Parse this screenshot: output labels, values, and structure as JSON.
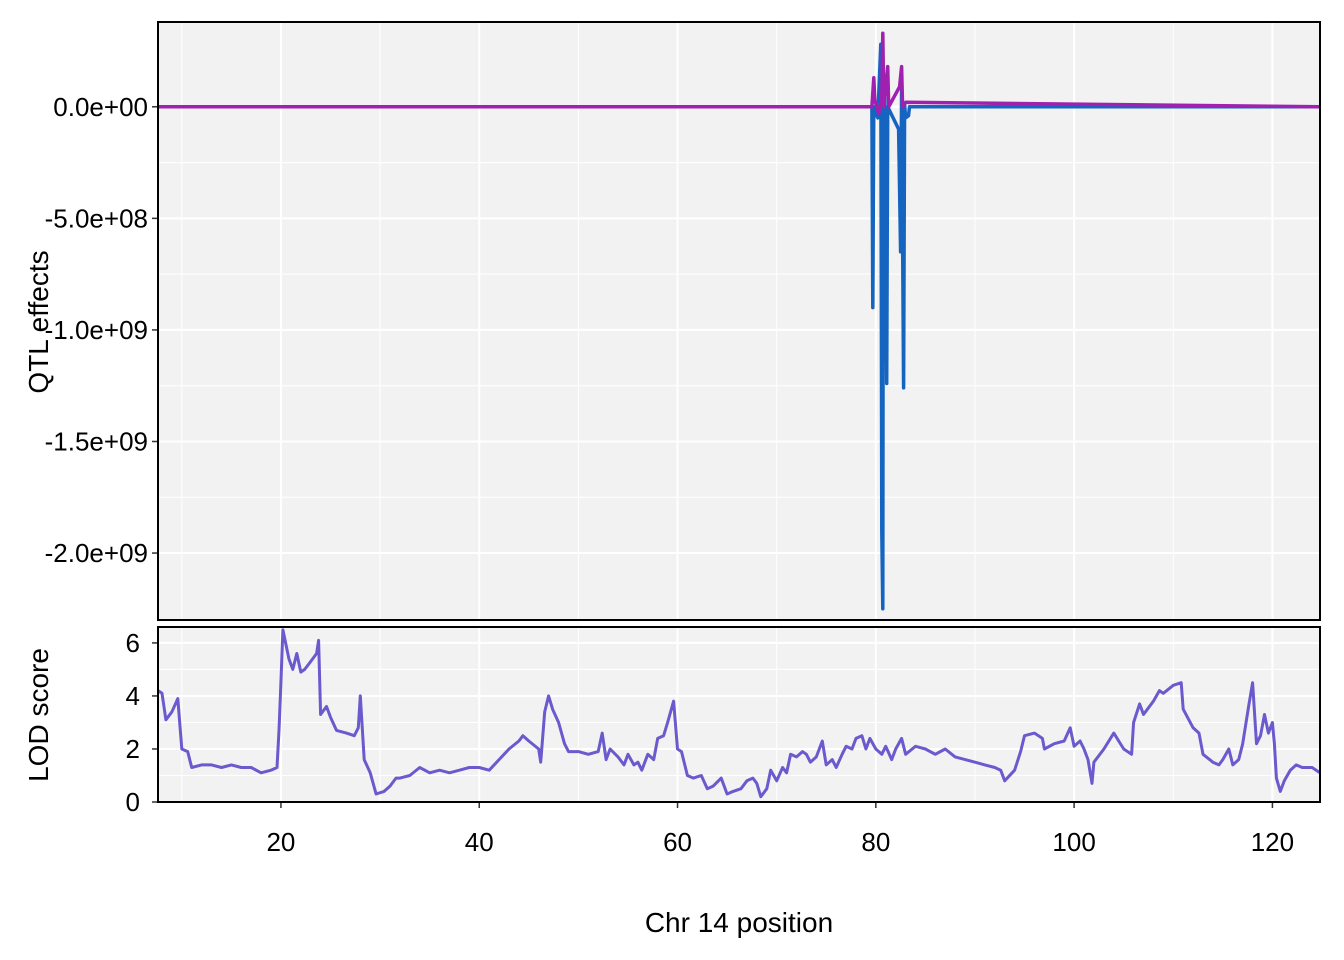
{
  "chart_data": [
    {
      "type": "line",
      "panel": "top",
      "ylabel": "QTL effects",
      "xlim": [
        7.6,
        124.8
      ],
      "ylim": [
        -2300000000,
        380000000
      ],
      "y_ticks": [
        {
          "value": 0,
          "label": "0.0e+00"
        },
        {
          "value": -500000000,
          "label": "-5.0e+08"
        },
        {
          "value": -1000000000,
          "label": "-1.0e+09"
        },
        {
          "value": -1500000000,
          "label": "-1.5e+09"
        },
        {
          "value": -2000000000,
          "label": "-2.0e+09"
        }
      ],
      "grid": true,
      "series": [
        {
          "color": "#1565C0",
          "points": [
            [
              7.6,
              0
            ],
            [
              79.6,
              0
            ],
            [
              79.7,
              -900000000
            ],
            [
              79.8,
              0
            ],
            [
              80.2,
              -50000000
            ],
            [
              80.5,
              280000000
            ],
            [
              80.6,
              -1900000000
            ],
            [
              80.7,
              -2250000000
            ],
            [
              80.75,
              0
            ],
            [
              80.9,
              120000000
            ],
            [
              81.1,
              -1240000000
            ],
            [
              81.2,
              0
            ],
            [
              82.3,
              -100000000
            ],
            [
              82.5,
              -650000000
            ],
            [
              82.6,
              80000000
            ],
            [
              82.8,
              -1260000000
            ],
            [
              82.9,
              10000000
            ],
            [
              83.0,
              -50000000
            ],
            [
              83.3,
              -40000000
            ],
            [
              83.4,
              0
            ],
            [
              124.8,
              0
            ]
          ]
        },
        {
          "color": "#A020B0",
          "points": [
            [
              7.6,
              0
            ],
            [
              79.6,
              0
            ],
            [
              79.8,
              130000000
            ],
            [
              79.9,
              30000000
            ],
            [
              80.3,
              -30000000
            ],
            [
              80.6,
              50000000
            ],
            [
              80.7,
              330000000
            ],
            [
              80.8,
              0
            ],
            [
              81.0,
              90000000
            ],
            [
              81.2,
              180000000
            ],
            [
              81.3,
              0
            ],
            [
              82.4,
              90000000
            ],
            [
              82.6,
              180000000
            ],
            [
              82.7,
              0
            ],
            [
              83.0,
              20000000
            ],
            [
              124.8,
              0
            ]
          ]
        }
      ]
    },
    {
      "type": "line",
      "panel": "bottom",
      "ylabel": "LOD score",
      "xlabel": "Chr 14 position",
      "xlim": [
        7.6,
        124.8
      ],
      "ylim": [
        0,
        6.6
      ],
      "x_ticks": [
        20,
        40,
        60,
        80,
        100,
        120
      ],
      "y_ticks": [
        0,
        2,
        4,
        6
      ],
      "grid": true,
      "series": [
        {
          "color": "#6A5ACD",
          "points": [
            [
              7.6,
              4.2
            ],
            [
              8.0,
              4.1
            ],
            [
              8.4,
              3.1
            ],
            [
              9.0,
              3.4
            ],
            [
              9.6,
              3.9
            ],
            [
              10.0,
              2.0
            ],
            [
              10.6,
              1.9
            ],
            [
              11.0,
              1.3
            ],
            [
              12.0,
              1.4
            ],
            [
              13.0,
              1.4
            ],
            [
              14.0,
              1.3
            ],
            [
              15.0,
              1.4
            ],
            [
              16.0,
              1.3
            ],
            [
              17.0,
              1.3
            ],
            [
              18.0,
              1.1
            ],
            [
              19.0,
              1.2
            ],
            [
              19.6,
              1.3
            ],
            [
              19.8,
              2.7
            ],
            [
              20.0,
              4.5
            ],
            [
              20.2,
              6.5
            ],
            [
              20.8,
              5.4
            ],
            [
              21.2,
              5.0
            ],
            [
              21.6,
              5.6
            ],
            [
              22.0,
              4.9
            ],
            [
              22.4,
              5.0
            ],
            [
              23.0,
              5.3
            ],
            [
              23.6,
              5.6
            ],
            [
              23.8,
              6.1
            ],
            [
              24.0,
              3.3
            ],
            [
              24.6,
              3.6
            ],
            [
              25.0,
              3.2
            ],
            [
              25.6,
              2.7
            ],
            [
              26.6,
              2.6
            ],
            [
              27.4,
              2.5
            ],
            [
              27.8,
              2.8
            ],
            [
              28.0,
              4.0
            ],
            [
              28.4,
              1.6
            ],
            [
              29.0,
              1.1
            ],
            [
              29.6,
              0.3
            ],
            [
              30.4,
              0.4
            ],
            [
              31.0,
              0.6
            ],
            [
              31.6,
              0.9
            ],
            [
              32.0,
              0.9
            ],
            [
              33.0,
              1.0
            ],
            [
              34.0,
              1.3
            ],
            [
              35.0,
              1.1
            ],
            [
              36.0,
              1.2
            ],
            [
              37.0,
              1.1
            ],
            [
              38.0,
              1.2
            ],
            [
              39.0,
              1.3
            ],
            [
              40.0,
              1.3
            ],
            [
              41.0,
              1.2
            ],
            [
              42.0,
              1.6
            ],
            [
              43.0,
              2.0
            ],
            [
              44.0,
              2.3
            ],
            [
              44.4,
              2.5
            ],
            [
              45.0,
              2.3
            ],
            [
              46.0,
              2.0
            ],
            [
              46.2,
              1.5
            ],
            [
              46.6,
              3.4
            ],
            [
              47.0,
              4.0
            ],
            [
              47.4,
              3.5
            ],
            [
              48.0,
              3.0
            ],
            [
              48.6,
              2.2
            ],
            [
              49.0,
              1.9
            ],
            [
              50.0,
              1.9
            ],
            [
              51.0,
              1.8
            ],
            [
              52.0,
              1.9
            ],
            [
              52.4,
              2.6
            ],
            [
              52.8,
              1.6
            ],
            [
              53.2,
              2.0
            ],
            [
              54.0,
              1.7
            ],
            [
              54.6,
              1.4
            ],
            [
              55.0,
              1.8
            ],
            [
              55.6,
              1.4
            ],
            [
              56.0,
              1.5
            ],
            [
              56.4,
              1.2
            ],
            [
              57.0,
              1.8
            ],
            [
              57.6,
              1.6
            ],
            [
              58.0,
              2.4
            ],
            [
              58.6,
              2.5
            ],
            [
              59.0,
              3.0
            ],
            [
              59.6,
              3.8
            ],
            [
              60.0,
              2.0
            ],
            [
              60.4,
              1.9
            ],
            [
              61.0,
              1.0
            ],
            [
              61.6,
              0.9
            ],
            [
              62.4,
              1.0
            ],
            [
              63.0,
              0.5
            ],
            [
              63.6,
              0.6
            ],
            [
              64.4,
              0.9
            ],
            [
              65.0,
              0.3
            ],
            [
              65.6,
              0.4
            ],
            [
              66.4,
              0.5
            ],
            [
              67.0,
              0.8
            ],
            [
              67.6,
              0.9
            ],
            [
              68.0,
              0.7
            ],
            [
              68.4,
              0.2
            ],
            [
              69.0,
              0.5
            ],
            [
              69.4,
              1.2
            ],
            [
              70.0,
              0.8
            ],
            [
              70.6,
              1.3
            ],
            [
              71.0,
              1.1
            ],
            [
              71.4,
              1.8
            ],
            [
              72.0,
              1.7
            ],
            [
              72.6,
              1.9
            ],
            [
              73.0,
              1.8
            ],
            [
              73.4,
              1.5
            ],
            [
              74.0,
              1.7
            ],
            [
              74.6,
              2.3
            ],
            [
              75.0,
              1.4
            ],
            [
              75.6,
              1.6
            ],
            [
              76.0,
              1.3
            ],
            [
              76.6,
              1.8
            ],
            [
              77.0,
              2.1
            ],
            [
              77.6,
              2.0
            ],
            [
              78.0,
              2.4
            ],
            [
              78.6,
              2.5
            ],
            [
              79.0,
              2.0
            ],
            [
              79.4,
              2.4
            ],
            [
              80.0,
              2.0
            ],
            [
              80.6,
              1.8
            ],
            [
              81.0,
              2.1
            ],
            [
              81.6,
              1.6
            ],
            [
              82.0,
              2.0
            ],
            [
              82.6,
              2.4
            ],
            [
              83.0,
              1.8
            ],
            [
              84.0,
              2.1
            ],
            [
              85.0,
              2.0
            ],
            [
              86.0,
              1.8
            ],
            [
              87.0,
              2.0
            ],
            [
              88.0,
              1.7
            ],
            [
              89.0,
              1.6
            ],
            [
              90.0,
              1.5
            ],
            [
              91.0,
              1.4
            ],
            [
              92.0,
              1.3
            ],
            [
              92.6,
              1.2
            ],
            [
              93.0,
              0.8
            ],
            [
              94.0,
              1.2
            ],
            [
              94.6,
              1.9
            ],
            [
              95.0,
              2.5
            ],
            [
              96.0,
              2.6
            ],
            [
              96.8,
              2.4
            ],
            [
              97.0,
              2.0
            ],
            [
              98.0,
              2.2
            ],
            [
              99.0,
              2.3
            ],
            [
              99.6,
              2.8
            ],
            [
              100.0,
              2.1
            ],
            [
              100.6,
              2.3
            ],
            [
              101.0,
              2.0
            ],
            [
              101.4,
              1.6
            ],
            [
              101.8,
              0.7
            ],
            [
              102.0,
              1.5
            ],
            [
              103.0,
              2.0
            ],
            [
              104.0,
              2.6
            ],
            [
              105.0,
              2.0
            ],
            [
              105.8,
              1.8
            ],
            [
              106.0,
              3.0
            ],
            [
              106.6,
              3.7
            ],
            [
              107.0,
              3.3
            ],
            [
              108.0,
              3.8
            ],
            [
              108.6,
              4.2
            ],
            [
              109.0,
              4.1
            ],
            [
              110.0,
              4.4
            ],
            [
              110.8,
              4.5
            ],
            [
              111.0,
              3.5
            ],
            [
              112.0,
              2.8
            ],
            [
              112.6,
              2.6
            ],
            [
              113.0,
              1.8
            ],
            [
              114.0,
              1.5
            ],
            [
              114.6,
              1.4
            ],
            [
              115.0,
              1.6
            ],
            [
              115.6,
              2.0
            ],
            [
              116.0,
              1.4
            ],
            [
              116.6,
              1.6
            ],
            [
              117.0,
              2.2
            ],
            [
              117.6,
              3.6
            ],
            [
              118.0,
              4.5
            ],
            [
              118.4,
              2.2
            ],
            [
              118.8,
              2.5
            ],
            [
              119.2,
              3.3
            ],
            [
              119.6,
              2.6
            ],
            [
              120.0,
              3.0
            ],
            [
              120.2,
              2.2
            ],
            [
              120.4,
              0.9
            ],
            [
              120.8,
              0.4
            ],
            [
              121.2,
              0.8
            ],
            [
              121.8,
              1.2
            ],
            [
              122.4,
              1.4
            ],
            [
              123.0,
              1.3
            ],
            [
              124.0,
              1.3
            ],
            [
              124.8,
              1.1
            ]
          ]
        }
      ]
    }
  ]
}
